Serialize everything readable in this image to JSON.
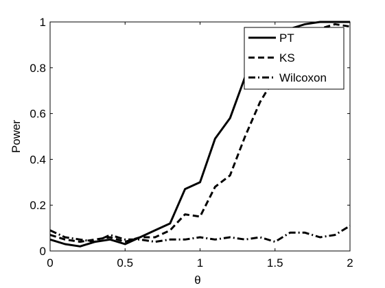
{
  "chart_data": {
    "type": "line",
    "title": "",
    "xlabel": "θ",
    "ylabel": "Power",
    "xlim": [
      0,
      2
    ],
    "ylim": [
      0,
      1
    ],
    "xticks": [
      0,
      0.5,
      1,
      1.5,
      2
    ],
    "xtick_labels": [
      "0",
      "0.5",
      "1",
      "1.5",
      "2"
    ],
    "yticks": [
      0,
      0.2,
      0.4,
      0.6,
      0.8,
      1
    ],
    "ytick_labels": [
      "0",
      "0.2",
      "0.4",
      "0.6",
      "0.8",
      "1"
    ],
    "grid": false,
    "legend_position": "top-right",
    "x": [
      0,
      0.1,
      0.2,
      0.3,
      0.4,
      0.5,
      0.6,
      0.7,
      0.8,
      0.9,
      1.0,
      1.1,
      1.2,
      1.3,
      1.4,
      1.5,
      1.6,
      1.7,
      1.8,
      1.9,
      2.0
    ],
    "series": [
      {
        "name": "PT",
        "style": "solid",
        "values": [
          0.05,
          0.03,
          0.02,
          0.04,
          0.05,
          0.03,
          0.06,
          0.09,
          0.12,
          0.27,
          0.3,
          0.49,
          0.58,
          0.76,
          0.9,
          0.95,
          0.97,
          0.99,
          1.0,
          1.0,
          1.0
        ]
      },
      {
        "name": "KS",
        "style": "dashed",
        "values": [
          0.07,
          0.05,
          0.04,
          0.05,
          0.06,
          0.04,
          0.06,
          0.06,
          0.09,
          0.16,
          0.15,
          0.28,
          0.33,
          0.5,
          0.65,
          0.76,
          0.84,
          0.94,
          0.97,
          0.99,
          0.98
        ]
      },
      {
        "name": "Wilcoxon",
        "style": "dashdot",
        "values": [
          0.09,
          0.06,
          0.05,
          0.04,
          0.07,
          0.05,
          0.05,
          0.04,
          0.05,
          0.05,
          0.06,
          0.05,
          0.06,
          0.05,
          0.06,
          0.04,
          0.08,
          0.08,
          0.06,
          0.07,
          0.11
        ]
      }
    ]
  }
}
